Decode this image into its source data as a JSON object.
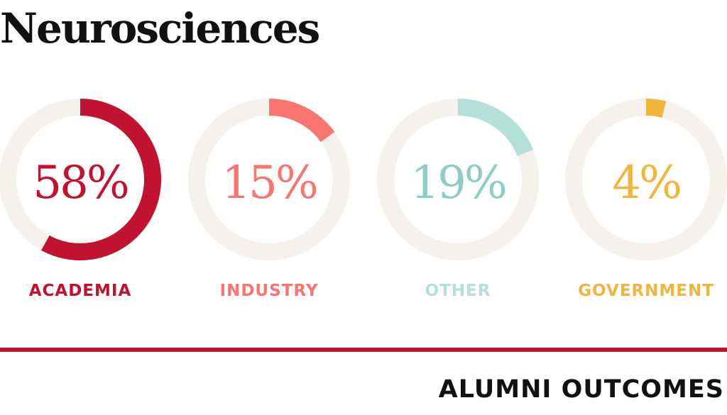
{
  "title": "Neurosciences",
  "footer": "ALUMNI OUTCOMES",
  "chart_data": {
    "type": "pie",
    "style": "donut",
    "series": [
      {
        "label": "ACADEMIA",
        "value": 58,
        "display": "58%",
        "color": "#c1122f"
      },
      {
        "label": "INDUSTRY",
        "value": 15,
        "display": "15%",
        "color": "#fa7470"
      },
      {
        "label": "OTHER",
        "value": 19,
        "display": "19%",
        "color": "#b3e0d8"
      },
      {
        "label": "GOVERNMENT",
        "value": 4,
        "display": "4%",
        "color": "#f0b63c"
      }
    ],
    "value_colors": [
      "#c1122f",
      "#fa7470",
      "#8ecdc1",
      "#f0b63c"
    ],
    "track_color": "#f5f1ec"
  }
}
